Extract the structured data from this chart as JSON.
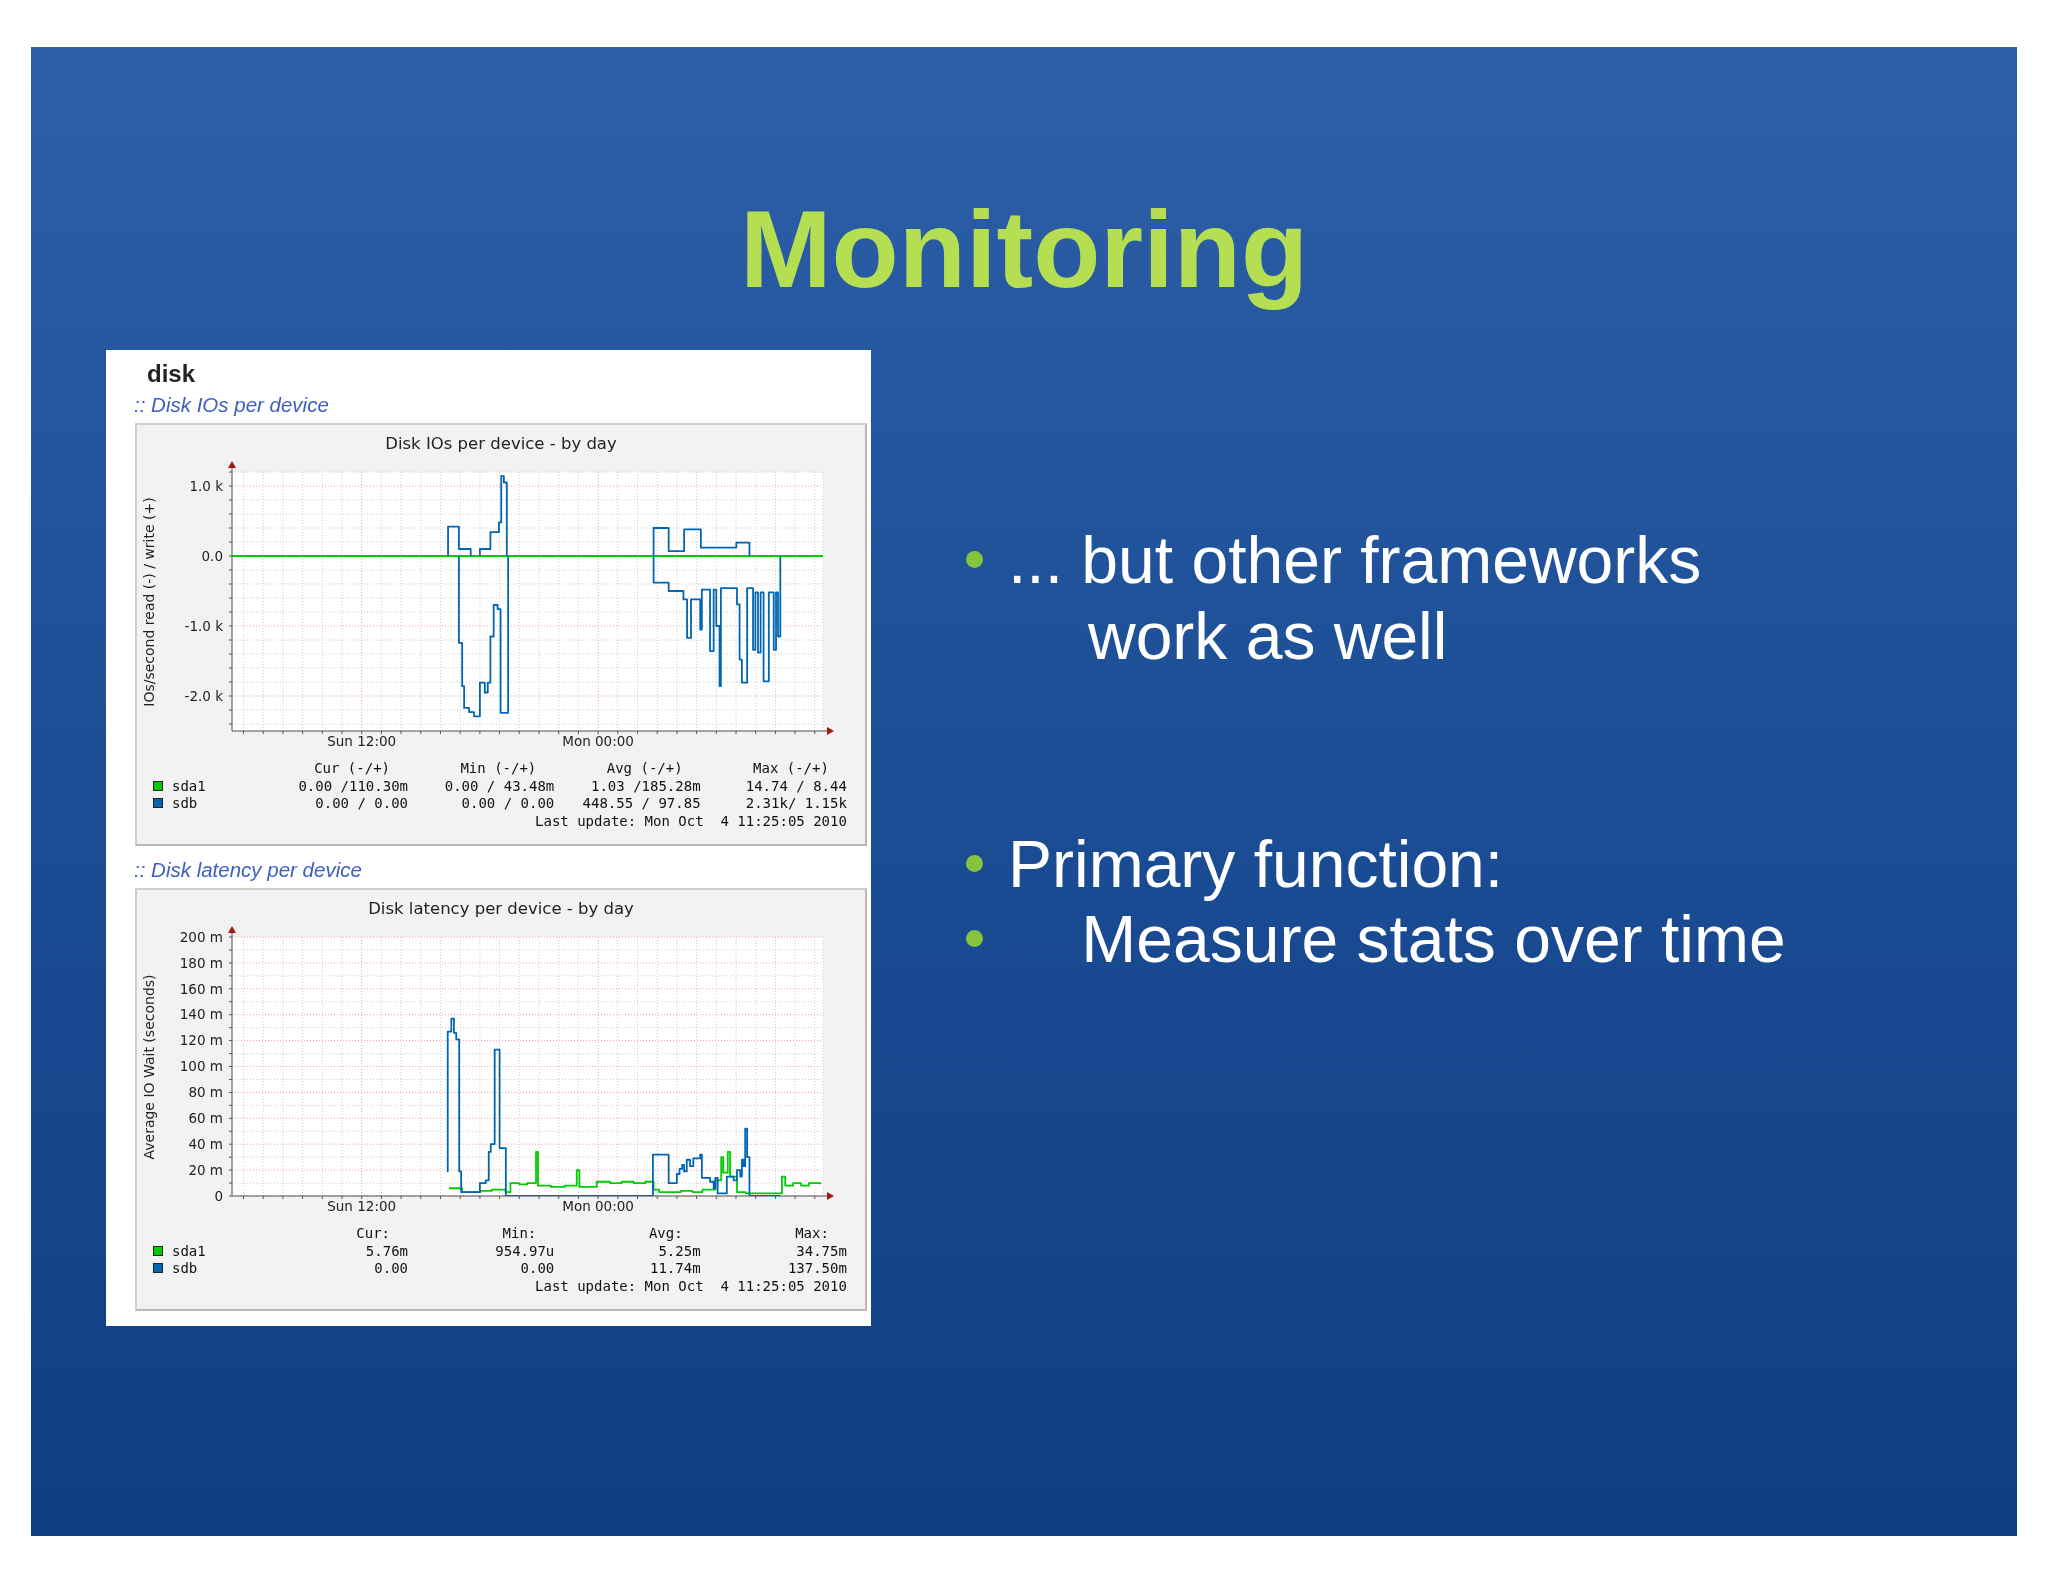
{
  "chart_data": [
    {
      "type": "other",
      "title": "Monitoring",
      "subtitle": "disk",
      "annotations": [
        "... but other frameworks work as well",
        "Primary function:",
        "    Measure stats over time"
      ]
    },
    {
      "type": "step",
      "title": "Disk IOs per device - by day",
      "subtitle": ":: Disk IOs per device",
      "ylabel": "IOs/second read (-) / write (+)",
      "xlim": [
        "2010-10-03T05:25",
        "2010-10-04T11:25"
      ],
      "xticks": [
        {
          "value": "2010-10-03T06:00",
          "label": null
        },
        {
          "value": "2010-10-03T07:00",
          "label": null
        },
        {
          "value": "2010-10-03T08:00",
          "label": null
        },
        {
          "value": "2010-10-03T09:00",
          "label": null
        },
        {
          "value": "2010-10-03T10:00",
          "label": null
        },
        {
          "value": "2010-10-03T11:00",
          "label": null
        },
        {
          "value": "2010-10-03T12:00",
          "label": "Sun 12:00"
        },
        {
          "value": "2010-10-03T13:00",
          "label": null
        },
        {
          "value": "2010-10-03T14:00",
          "label": null
        },
        {
          "value": "2010-10-03T15:00",
          "label": null
        },
        {
          "value": "2010-10-03T16:00",
          "label": null
        },
        {
          "value": "2010-10-03T17:00",
          "label": null
        },
        {
          "value": "2010-10-03T18:00",
          "label": null
        },
        {
          "value": "2010-10-03T19:00",
          "label": null
        },
        {
          "value": "2010-10-03T20:00",
          "label": null
        },
        {
          "value": "2010-10-03T21:00",
          "label": null
        },
        {
          "value": "2010-10-03T22:00",
          "label": null
        },
        {
          "value": "2010-10-03T23:00",
          "label": null
        },
        {
          "value": "2010-10-04T00:00",
          "label": "Mon 00:00"
        },
        {
          "value": "2010-10-04T01:00",
          "label": null
        },
        {
          "value": "2010-10-04T02:00",
          "label": null
        },
        {
          "value": "2010-10-04T03:00",
          "label": null
        },
        {
          "value": "2010-10-04T04:00",
          "label": null
        },
        {
          "value": "2010-10-04T05:00",
          "label": null
        },
        {
          "value": "2010-10-04T06:00",
          "label": null
        },
        {
          "value": "2010-10-04T07:00",
          "label": null
        },
        {
          "value": "2010-10-04T08:00",
          "label": null
        },
        {
          "value": "2010-10-04T09:00",
          "label": null
        },
        {
          "value": "2010-10-04T10:00",
          "label": null
        },
        {
          "value": "2010-10-04T11:00",
          "label": null
        }
      ],
      "ylim": [
        -2500,
        1200
      ],
      "yticks": [
        {
          "value": -2400,
          "label": null
        },
        {
          "value": -2200,
          "label": null
        },
        {
          "value": -2000,
          "label": "-2.0 k"
        },
        {
          "value": -1800,
          "label": null
        },
        {
          "value": -1600,
          "label": null
        },
        {
          "value": -1400,
          "label": null
        },
        {
          "value": -1200,
          "label": null
        },
        {
          "value": -1000,
          "label": "-1.0 k"
        },
        {
          "value": -800,
          "label": null
        },
        {
          "value": -600,
          "label": null
        },
        {
          "value": -400,
          "label": null
        },
        {
          "value": -200,
          "label": null
        },
        {
          "value": 0,
          "label": "0.0"
        },
        {
          "value": 200,
          "label": null
        },
        {
          "value": 400,
          "label": null
        },
        {
          "value": 600,
          "label": null
        },
        {
          "value": 800,
          "label": null
        },
        {
          "value": 1000,
          "label": "1.0 k"
        },
        {
          "value": 1200,
          "label": null
        }
      ],
      "grid": true,
      "legend": "bottom left",
      "series": [
        {
          "name": "sda1",
          "color": "#00cc00",
          "x": [
            "2010-10-03T05:25",
            "2010-10-04T11:25"
          ],
          "values": [
            0,
            0
          ]
        },
        {
          "name": "sdb",
          "color": "#0066b3",
          "x": [
            "2010-10-03T16:23",
            "2010-10-03T16:23",
            "2010-10-03T16:56",
            "2010-10-03T17:32",
            "2010-10-03T17:46",
            "2010-10-03T18:00",
            "2010-10-03T18:00",
            "2010-10-03T18:32",
            "2010-10-03T18:58",
            "2010-10-03T19:05",
            "2010-10-03T19:13",
            "2010-10-03T19:22",
            "2010-10-03T23:00",
            "2010-10-04T02:49",
            "2010-10-04T02:49",
            "2010-10-04T03:35",
            "2010-10-04T04:22",
            "2010-10-04T05:13",
            "2010-10-04T07:01",
            "2010-10-04T07:41"
          ],
          "values": [
            0,
            420,
            100,
            0,
            null,
            0,
            100,
            340,
            480,
            1140,
            1050,
            0,
            null,
            0,
            400,
            70,
            380,
            120,
            190,
            0
          ]
        },
        {
          "color": "#0066b3",
          "x": [
            "2010-10-03T16:56",
            "2010-10-03T16:56",
            "2010-10-03T17:06",
            "2010-10-03T17:12",
            "2010-10-03T17:27",
            "2010-10-03T17:42",
            "2010-10-03T18:00",
            "2010-10-03T18:15",
            "2010-10-03T18:24",
            "2010-10-03T18:32",
            "2010-10-03T18:42",
            "2010-10-03T18:54",
            "2010-10-03T19:03",
            "2010-10-03T19:26",
            "2010-10-03T23:00",
            "2010-10-04T02:49",
            "2010-10-04T02:49",
            "2010-10-04T03:35",
            "2010-10-04T04:20",
            "2010-10-04T04:31",
            "2010-10-04T04:43",
            "2010-10-04T05:11",
            "2010-10-04T05:16",
            "2010-10-04T05:41",
            "2010-10-04T05:52",
            "2010-10-04T06:00",
            "2010-10-04T06:10",
            "2010-10-04T06:14",
            "2010-10-04T07:03",
            "2010-10-04T07:11",
            "2010-10-04T07:18",
            "2010-10-04T07:34",
            "2010-10-04T07:52",
            "2010-10-04T07:59",
            "2010-10-04T08:07",
            "2010-10-04T08:15",
            "2010-10-04T08:24",
            "2010-10-04T08:40",
            "2010-10-04T08:55",
            "2010-10-04T09:02",
            "2010-10-04T09:08",
            "2010-10-04T09:15"
          ],
          "values": [
            0,
            -1240,
            -1860,
            -2170,
            -2230,
            -2290,
            -1810,
            -1950,
            -1810,
            -1150,
            -700,
            -760,
            -2240,
            0,
            null,
            0,
            -380,
            -500,
            -620,
            -1170,
            -620,
            -1050,
            -480,
            -1360,
            -480,
            -1000,
            -1860,
            -460,
            -690,
            -1480,
            -1810,
            -460,
            -1340,
            -520,
            -1380,
            -520,
            -1790,
            -520,
            -1340,
            -520,
            -1150,
            0
          ]
        }
      ],
      "annotations": [
        "Cur (-/+)",
        "Min (-/+)",
        "Avg (-/+)",
        "Max (-/+)",
        "0.00 /110.30m",
        "0.00 / 43.48m",
        "1.03 /185.28m",
        "14.74 / 8.44",
        "0.00 / 0.00",
        "0.00 / 0.00",
        "448.55 / 97.85",
        "2.31k/ 1.15k",
        "Last update: Mon Oct  4 11:25:05 2010"
      ]
    },
    {
      "type": "step",
      "title": "Disk latency per device - by day",
      "subtitle": ":: Disk latency per device",
      "ylabel": "Average IO Wait (seconds)",
      "xlim": [
        "2010-10-03T05:25",
        "2010-10-04T11:25"
      ],
      "xticks": [
        {
          "value": "2010-10-03T06:00",
          "label": null
        },
        {
          "value": "2010-10-03T07:00",
          "label": null
        },
        {
          "value": "2010-10-03T08:00",
          "label": null
        },
        {
          "value": "2010-10-03T09:00",
          "label": null
        },
        {
          "value": "2010-10-03T10:00",
          "label": null
        },
        {
          "value": "2010-10-03T11:00",
          "label": null
        },
        {
          "value": "2010-10-03T12:00",
          "label": "Sun 12:00"
        },
        {
          "value": "2010-10-03T13:00",
          "label": null
        },
        {
          "value": "2010-10-03T14:00",
          "label": null
        },
        {
          "value": "2010-10-03T15:00",
          "label": null
        },
        {
          "value": "2010-10-03T16:00",
          "label": null
        },
        {
          "value": "2010-10-03T17:00",
          "label": null
        },
        {
          "value": "2010-10-03T18:00",
          "label": null
        },
        {
          "value": "2010-10-03T19:00",
          "label": null
        },
        {
          "value": "2010-10-03T20:00",
          "label": null
        },
        {
          "value": "2010-10-03T21:00",
          "label": null
        },
        {
          "value": "2010-10-03T22:00",
          "label": null
        },
        {
          "value": "2010-10-03T23:00",
          "label": null
        },
        {
          "value": "2010-10-04T00:00",
          "label": "Mon 00:00"
        },
        {
          "value": "2010-10-04T01:00",
          "label": null
        },
        {
          "value": "2010-10-04T02:00",
          "label": null
        },
        {
          "value": "2010-10-04T03:00",
          "label": null
        },
        {
          "value": "2010-10-04T04:00",
          "label": null
        },
        {
          "value": "2010-10-04T05:00",
          "label": null
        },
        {
          "value": "2010-10-04T06:00",
          "label": null
        },
        {
          "value": "2010-10-04T07:00",
          "label": null
        },
        {
          "value": "2010-10-04T08:00",
          "label": null
        },
        {
          "value": "2010-10-04T09:00",
          "label": null
        },
        {
          "value": "2010-10-04T10:00",
          "label": null
        },
        {
          "value": "2010-10-04T11:00",
          "label": null
        }
      ],
      "ylim": [
        0,
        200
      ],
      "yticks": [
        0,
        {
          "value": 10,
          "label": null
        },
        {
          "value": 20,
          "label": "20 m"
        },
        {
          "value": 30,
          "label": null
        },
        {
          "value": 40,
          "label": "40 m"
        },
        {
          "value": 50,
          "label": null
        },
        {
          "value": 60,
          "label": "60 m"
        },
        {
          "value": 70,
          "label": null
        },
        {
          "value": 80,
          "label": "80 m"
        },
        {
          "value": 90,
          "label": null
        },
        {
          "value": 100,
          "label": "100 m"
        },
        {
          "value": 110,
          "label": null
        },
        {
          "value": 120,
          "label": "120 m"
        },
        {
          "value": 130,
          "label": null
        },
        {
          "value": 140,
          "label": "140 m"
        },
        {
          "value": 150,
          "label": null
        },
        {
          "value": 160,
          "label": "160 m"
        },
        {
          "value": 170,
          "label": null
        },
        {
          "value": 180,
          "label": "180 m"
        },
        {
          "value": 190,
          "label": null
        },
        {
          "value": 200,
          "label": "200 m"
        }
      ],
      "grid": true,
      "legend": "bottom left",
      "series": [
        {
          "name": "sda1",
          "color": "#00cc00",
          "x": [
            "2010-10-03T16:26",
            "2010-10-03T17:06",
            "2010-10-03T18:02",
            "2010-10-03T18:36",
            "2010-10-03T19:18",
            "2010-10-03T19:33",
            "2010-10-03T20:00",
            "2010-10-03T20:24",
            "2010-10-03T20:51",
            "2010-10-03T20:57",
            "2010-10-03T21:36",
            "2010-10-03T22:18",
            "2010-10-03T22:55",
            "2010-10-03T23:03",
            "2010-10-03T23:56",
            "2010-10-04T00:36",
            "2010-10-04T01:12",
            "2010-10-04T01:48",
            "2010-10-04T02:24",
            "2010-10-04T02:49",
            "2010-10-04T03:06",
            "2010-10-04T04:12",
            "2010-10-04T04:48",
            "2010-10-04T05:18",
            "2010-10-04T05:57",
            "2010-10-04T06:15",
            "2010-10-04T06:21",
            "2010-10-04T06:35",
            "2010-10-04T06:42",
            "2010-10-04T07:03",
            "2010-10-04T07:30",
            "2010-10-04T09:20",
            "2010-10-04T09:30",
            "2010-10-04T09:54",
            "2010-10-04T10:18",
            "2010-10-04T10:42",
            "2010-10-04T11:17"
          ],
          "values": [
            6,
            3,
            4,
            5,
            3,
            10,
            9,
            10,
            34,
            8,
            7,
            8,
            20,
            7,
            11,
            10,
            11,
            10,
            11,
            5,
            3,
            4,
            3,
            5,
            12,
            30,
            18,
            34,
            15,
            3,
            2,
            15,
            8,
            10,
            8,
            10,
            9
          ]
        },
        {
          "name": "sdb",
          "color": "#0066b3",
          "x": [
            "2010-10-03T16:20",
            "2010-10-03T16:22",
            "2010-10-03T16:33",
            "2010-10-03T16:41",
            "2010-10-03T16:48",
            "2010-10-03T16:57",
            "2010-10-03T17:03",
            "2010-10-03T18:00",
            "2010-10-03T18:18",
            "2010-10-03T18:27",
            "2010-10-03T18:33",
            "2010-10-03T18:45",
            "2010-10-03T19:00",
            "2010-10-03T19:19",
            "2010-10-04T02:47",
            "2010-10-04T03:35",
            "2010-10-04T04:00",
            "2010-10-04T04:08",
            "2010-10-04T04:16",
            "2010-10-04T04:22",
            "2010-10-04T04:30",
            "2010-10-04T04:40",
            "2010-10-04T04:50",
            "2010-10-04T05:11",
            "2010-10-04T05:16",
            "2010-10-04T05:41",
            "2010-10-04T05:52",
            "2010-10-04T05:57",
            "2010-10-04T06:04",
            "2010-10-04T06:32",
            "2010-10-04T06:53",
            "2010-10-04T07:03",
            "2010-10-04T07:13",
            "2010-10-04T07:18",
            "2010-10-04T07:23",
            "2010-10-04T07:28",
            "2010-10-04T07:34",
            "2010-10-04T07:41",
            "2010-10-04T09:15"
          ],
          "values": [
            19,
            127,
            137,
            126,
            121,
            19,
            3,
            10,
            12,
            34,
            40,
            113,
            37,
            0,
            32,
            10,
            17,
            21,
            24,
            19,
            28,
            23,
            29,
            32,
            14,
            11,
            6,
            14,
            2,
            15,
            12,
            20,
            15,
            28,
            23,
            52,
            30,
            0,
            0
          ]
        }
      ],
      "annotations": [
        "Cur:",
        "Min:",
        "Avg:",
        "Max:",
        "5.76m",
        "954.97u",
        "5.25m",
        "34.75m",
        "0.00",
        "0.00",
        "11.74m",
        "137.50m",
        "Last update: Mon Oct  4 11:25:05 2010"
      ]
    }
  ]
}
